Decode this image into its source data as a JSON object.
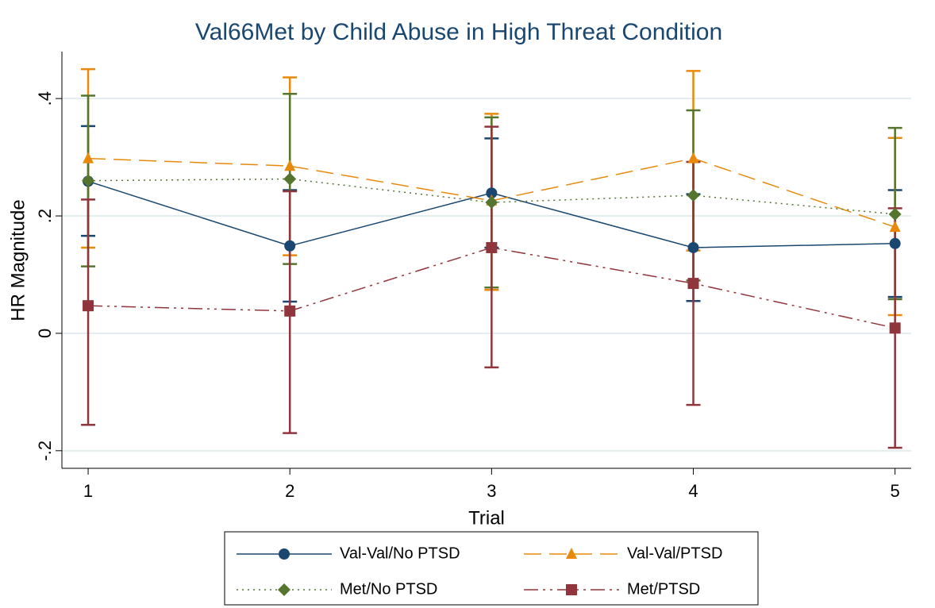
{
  "chart_data": {
    "type": "line",
    "title": "Val66Met by Child Abuse in High Threat Condition",
    "x_label": "Trial",
    "y_label": "HR Magnitude",
    "x": [
      1,
      2,
      3,
      4,
      5
    ],
    "xlim": [
      0.87,
      5.08
    ],
    "xticks": [
      1,
      2,
      3,
      4,
      5
    ],
    "ylim": [
      -0.23,
      0.48
    ],
    "yticks": [
      {
        "value": -0.2,
        "label": "-.2"
      },
      0,
      {
        "value": 0.2,
        "label": ".2"
      },
      {
        "value": 0.4,
        "label": ".4"
      }
    ],
    "grid": true,
    "series": [
      {
        "name": "Val-Val/No PTSD",
        "color": "#1a476f",
        "values": [
          0.259,
          0.149,
          0.239,
          0.146,
          0.153
        ],
        "lower": [
          0.166,
          0.054,
          0.146,
          0.055,
          0.062
        ],
        "upper": [
          0.353,
          0.244,
          0.332,
          0.237,
          0.244
        ]
      },
      {
        "name": "Val-Val/PTSD",
        "color": "#e8890c",
        "values": [
          0.298,
          0.285,
          0.226,
          0.298,
          0.181
        ],
        "lower": [
          0.146,
          0.133,
          0.074,
          0.141,
          0.031
        ],
        "upper": [
          0.45,
          0.436,
          0.374,
          0.447,
          0.333
        ]
      },
      {
        "name": "Met/No PTSD",
        "color": "#55752f",
        "values": [
          0.26,
          0.263,
          0.223,
          0.235,
          0.203
        ],
        "lower": [
          0.114,
          0.118,
          0.078,
          0.09,
          0.058
        ],
        "upper": [
          0.405,
          0.408,
          0.368,
          0.38,
          0.35
        ]
      },
      {
        "name": "Met/PTSD",
        "color": "#90353b",
        "values": [
          0.047,
          0.038,
          0.146,
          0.085,
          0.009
        ],
        "lower": [
          -0.156,
          -0.17,
          -0.058,
          -0.122,
          -0.195
        ],
        "upper": [
          0.228,
          0.242,
          0.352,
          0.292,
          0.213
        ]
      }
    ]
  }
}
